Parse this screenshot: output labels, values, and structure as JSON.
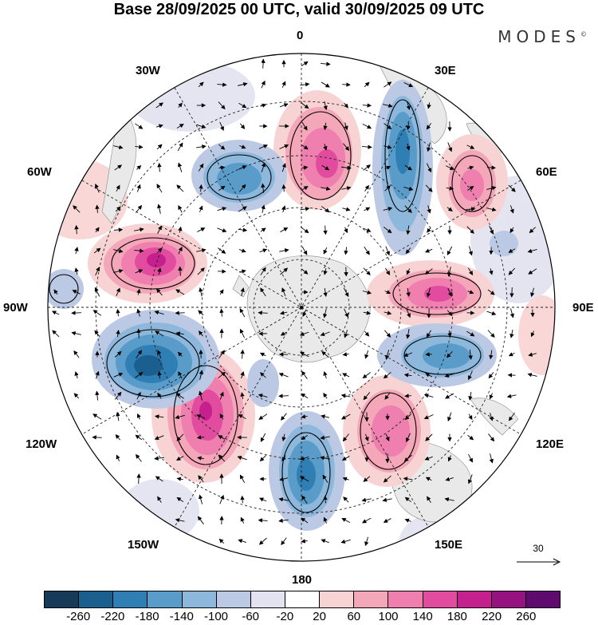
{
  "title": "Base 28/09/2025 00 UTC, valid 30/09/2025 09 UTC",
  "brand": "MODES",
  "brand_mark": "©",
  "longitude_labels": {
    "lon_0": "0",
    "lon_30e": "30E",
    "lon_60e": "60E",
    "lon_90e": "90E",
    "lon_120e": "120E",
    "lon_150e": "150E",
    "lon_180": "180",
    "lon_150w": "150W",
    "lon_120w": "120W",
    "lon_90w": "90W",
    "lon_60w": "60W",
    "lon_30w": "30W"
  },
  "reference_vector": {
    "value": "30"
  },
  "colorbar": {
    "colors": [
      "#163a57",
      "#1b5f8f",
      "#2f7fb5",
      "#5a9cc9",
      "#8db8dc",
      "#bcc9e4",
      "#e2e2f0",
      "#ffffff",
      "#f8d3d3",
      "#f3a7b8",
      "#ee7fae",
      "#e24c9f",
      "#c4208e",
      "#951280",
      "#5e0a6e"
    ],
    "ticks": [
      "-260",
      "-220",
      "-180",
      "-140",
      "-100",
      "-60",
      "-20",
      "20",
      "60",
      "100",
      "140",
      "180",
      "220",
      "260"
    ]
  }
}
